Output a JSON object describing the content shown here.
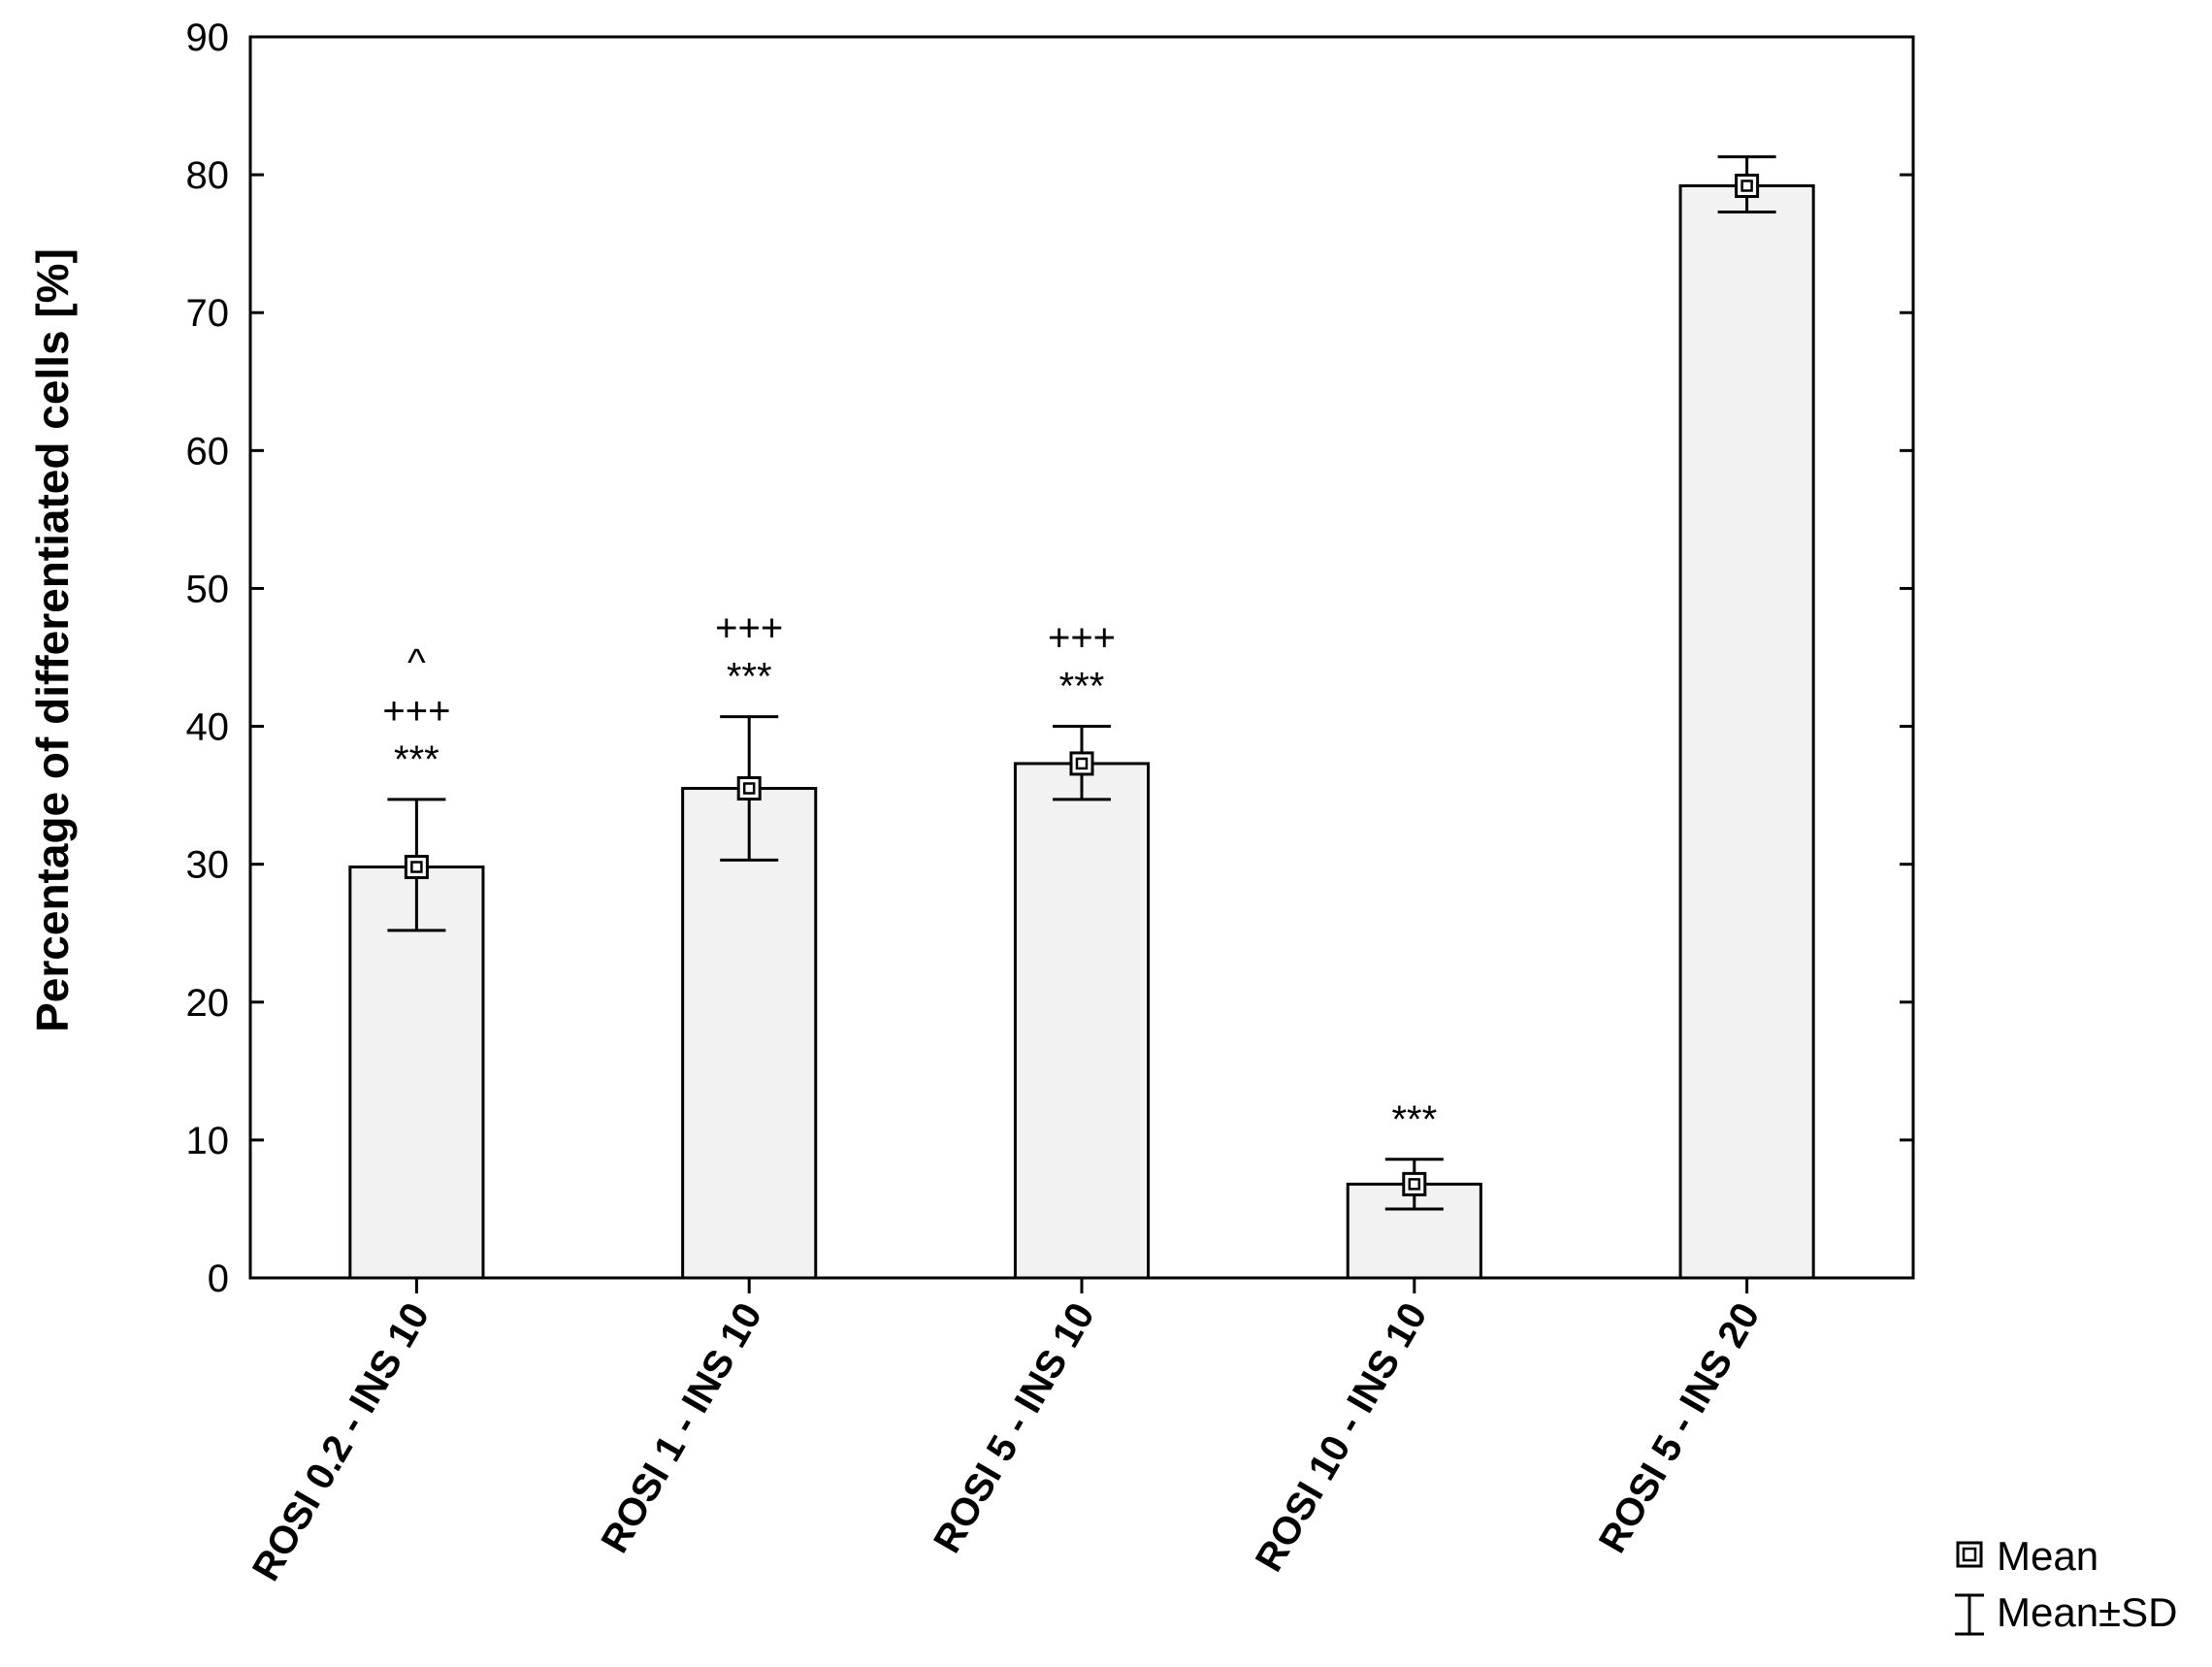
{
  "chart_data": {
    "type": "bar",
    "categories": [
      "ROSI 0.2 - INS 10",
      "ROSI 1 - INS 10",
      "ROSI 5 - INS 10",
      "ROSI 10 - INS 10",
      "ROSI 5 - INS 20"
    ],
    "series": [
      {
        "values": [
          29.8,
          35.5,
          37.3,
          6.8,
          79.2
        ],
        "error_low": [
          25.2,
          30.3,
          34.7,
          5.0,
          77.3
        ],
        "error_high": [
          34.7,
          40.7,
          40.0,
          8.6,
          81.3
        ]
      }
    ],
    "annotations": [
      [
        "^",
        "+++",
        "***"
      ],
      [
        "+++",
        "***"
      ],
      [
        "+++",
        "***"
      ],
      [
        "***"
      ],
      []
    ],
    "ylabel": "Percentage of differentiated cells [%]",
    "xlabel": "",
    "title": "",
    "ylim": [
      0,
      90
    ],
    "yticks": [
      0,
      10,
      20,
      30,
      40,
      50,
      60,
      70,
      80,
      90
    ],
    "grid": false,
    "legend": {
      "placement": "bottom-right",
      "items": [
        "Mean",
        "Mean±SD"
      ]
    },
    "colors": {
      "bar_fill": "#f2f2f2",
      "stroke": "#000000",
      "background": "#ffffff"
    }
  }
}
